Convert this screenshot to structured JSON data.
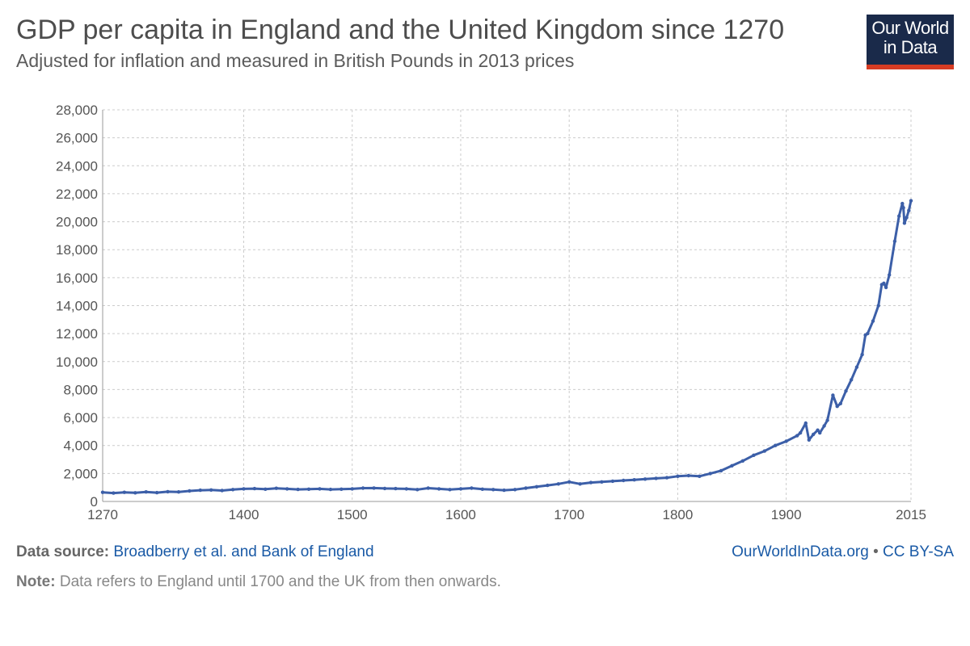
{
  "title": "GDP per capita in England and the United Kingdom since 1270",
  "subtitle": "Adjusted for inflation and measured in British Pounds in 2013 prices",
  "logo": {
    "line1": "Our World",
    "line2": "in Data"
  },
  "footer": {
    "source_label": "Data source:",
    "source_text": "Broadberry et al. and Bank of England",
    "site": "OurWorldInData.org",
    "separator": "•",
    "license": "CC BY-SA",
    "note_label": "Note:",
    "note_text": "Data refers to England until 1700 and the UK from then onwards."
  },
  "colors": {
    "line": "#3c5fa8",
    "grid": "#cccccc",
    "axis": "#999999",
    "logo_bg": "#1a2a4a",
    "logo_bar": "#d73c23"
  },
  "chart_data": {
    "type": "line",
    "title": "GDP per capita in England and the United Kingdom since 1270",
    "xlabel": "",
    "ylabel": "",
    "xlim": [
      1270,
      2015
    ],
    "ylim": [
      0,
      28000
    ],
    "x_ticks": [
      1270,
      1400,
      1500,
      1600,
      1700,
      1800,
      1900,
      2015
    ],
    "y_ticks": [
      0,
      2000,
      4000,
      6000,
      8000,
      10000,
      12000,
      14000,
      16000,
      18000,
      20000,
      22000,
      24000,
      26000,
      28000
    ],
    "y_tick_labels": [
      "0",
      "2,000",
      "4,000",
      "6,000",
      "8,000",
      "10,000",
      "12,000",
      "14,000",
      "16,000",
      "18,000",
      "20,000",
      "22,000",
      "24,000",
      "26,000",
      "28,000"
    ],
    "grid": true,
    "series": [
      {
        "name": "GDP per capita",
        "points": [
          [
            1270,
            650
          ],
          [
            1280,
            600
          ],
          [
            1290,
            650
          ],
          [
            1300,
            620
          ],
          [
            1310,
            680
          ],
          [
            1320,
            630
          ],
          [
            1330,
            700
          ],
          [
            1340,
            680
          ],
          [
            1350,
            750
          ],
          [
            1360,
            800
          ],
          [
            1370,
            820
          ],
          [
            1380,
            780
          ],
          [
            1390,
            850
          ],
          [
            1400,
            900
          ],
          [
            1410,
            920
          ],
          [
            1420,
            880
          ],
          [
            1430,
            940
          ],
          [
            1440,
            900
          ],
          [
            1450,
            860
          ],
          [
            1460,
            880
          ],
          [
            1470,
            900
          ],
          [
            1480,
            860
          ],
          [
            1490,
            880
          ],
          [
            1500,
            900
          ],
          [
            1510,
            950
          ],
          [
            1520,
            960
          ],
          [
            1530,
            930
          ],
          [
            1540,
            920
          ],
          [
            1550,
            900
          ],
          [
            1560,
            850
          ],
          [
            1570,
            950
          ],
          [
            1580,
            900
          ],
          [
            1590,
            850
          ],
          [
            1600,
            900
          ],
          [
            1610,
            950
          ],
          [
            1620,
            880
          ],
          [
            1630,
            850
          ],
          [
            1640,
            800
          ],
          [
            1650,
            850
          ],
          [
            1660,
            950
          ],
          [
            1670,
            1050
          ],
          [
            1680,
            1150
          ],
          [
            1690,
            1250
          ],
          [
            1700,
            1400
          ],
          [
            1710,
            1250
          ],
          [
            1720,
            1350
          ],
          [
            1730,
            1400
          ],
          [
            1740,
            1450
          ],
          [
            1750,
            1500
          ],
          [
            1760,
            1550
          ],
          [
            1770,
            1600
          ],
          [
            1780,
            1650
          ],
          [
            1790,
            1700
          ],
          [
            1800,
            1800
          ],
          [
            1810,
            1850
          ],
          [
            1820,
            1800
          ],
          [
            1830,
            2000
          ],
          [
            1840,
            2200
          ],
          [
            1850,
            2550
          ],
          [
            1860,
            2900
          ],
          [
            1870,
            3300
          ],
          [
            1880,
            3600
          ],
          [
            1890,
            4000
          ],
          [
            1900,
            4300
          ],
          [
            1910,
            4700
          ],
          [
            1913,
            4900
          ],
          [
            1918,
            5600
          ],
          [
            1921,
            4400
          ],
          [
            1925,
            4800
          ],
          [
            1929,
            5100
          ],
          [
            1931,
            4900
          ],
          [
            1935,
            5400
          ],
          [
            1938,
            5800
          ],
          [
            1943,
            7600
          ],
          [
            1947,
            6800
          ],
          [
            1950,
            7000
          ],
          [
            1955,
            7900
          ],
          [
            1960,
            8700
          ],
          [
            1965,
            9600
          ],
          [
            1970,
            10500
          ],
          [
            1973,
            11900
          ],
          [
            1975,
            12000
          ],
          [
            1980,
            12900
          ],
          [
            1985,
            14000
          ],
          [
            1988,
            15500
          ],
          [
            1990,
            15600
          ],
          [
            1992,
            15300
          ],
          [
            1995,
            16200
          ],
          [
            2000,
            18600
          ],
          [
            2004,
            20400
          ],
          [
            2007,
            21300
          ],
          [
            2008,
            21000
          ],
          [
            2009,
            19900
          ],
          [
            2011,
            20300
          ],
          [
            2013,
            20800
          ],
          [
            2015,
            21500
          ]
        ]
      }
    ]
  }
}
